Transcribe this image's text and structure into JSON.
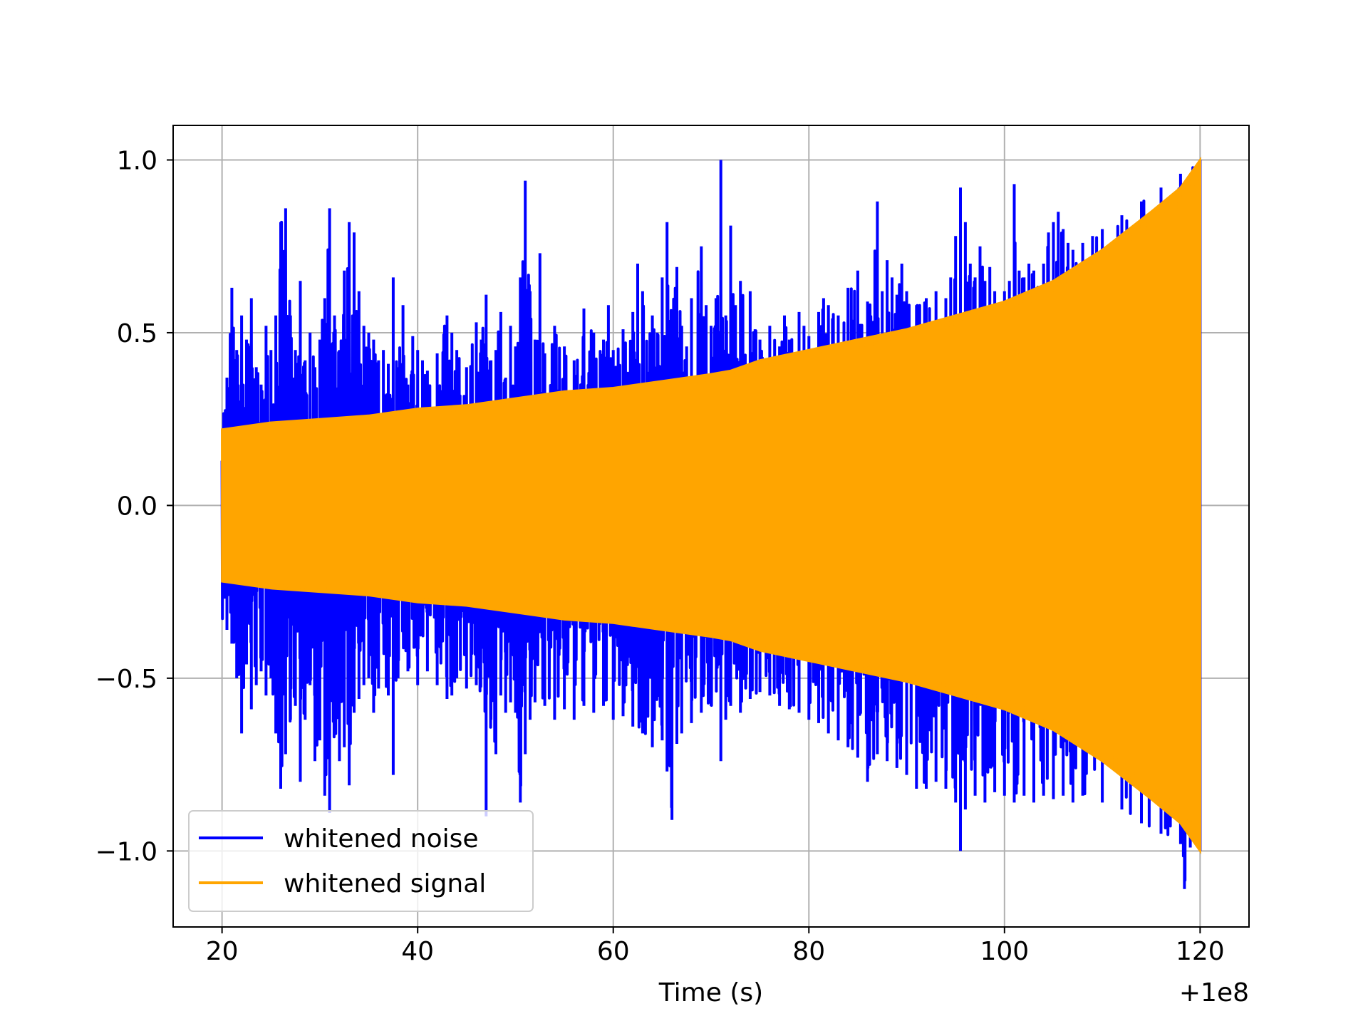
{
  "chart_data": {
    "type": "line",
    "title": "",
    "xlabel": "Time (s)",
    "ylabel": "",
    "x_offset_label": "+1e8",
    "xlim": [
      15,
      125
    ],
    "ylim": [
      -1.22,
      1.1
    ],
    "x_ticks": [
      20,
      40,
      60,
      80,
      100,
      120
    ],
    "x_tick_labels": [
      "20",
      "40",
      "60",
      "80",
      "100",
      "120"
    ],
    "y_ticks": [
      -1.0,
      -0.5,
      0.0,
      0.5,
      1.0
    ],
    "y_tick_labels": [
      "−1.0",
      "−0.5",
      "0.0",
      "0.5",
      "1.0"
    ],
    "grid": true,
    "legend_position": "lower-left",
    "series": [
      {
        "name": "whitened noise",
        "color": "#0000ff",
        "x_range": [
          20,
          120
        ],
        "upper_peaks": [
          [
            20.5,
            0.37
          ],
          [
            21.0,
            0.63
          ],
          [
            21.5,
            0.45
          ],
          [
            22.0,
            0.55
          ],
          [
            22.5,
            0.48
          ],
          [
            23.0,
            0.6
          ],
          [
            23.5,
            0.4
          ],
          [
            24.0,
            0.35
          ],
          [
            24.5,
            0.52
          ],
          [
            25.0,
            0.45
          ],
          [
            25.5,
            0.55
          ],
          [
            26.0,
            0.82
          ],
          [
            26.5,
            0.86
          ],
          [
            27.0,
            0.55
          ],
          [
            27.5,
            0.45
          ],
          [
            28.0,
            0.65
          ],
          [
            28.5,
            0.42
          ],
          [
            29.0,
            0.5
          ],
          [
            29.5,
            0.4
          ],
          [
            30.0,
            0.48
          ],
          [
            30.5,
            0.6
          ],
          [
            31.0,
            0.86
          ],
          [
            31.5,
            0.55
          ],
          [
            32.0,
            0.45
          ],
          [
            32.5,
            0.68
          ],
          [
            33.0,
            0.82
          ],
          [
            33.5,
            0.79
          ],
          [
            34.0,
            0.62
          ],
          [
            34.5,
            0.52
          ],
          [
            35.0,
            0.5
          ],
          [
            35.5,
            0.48
          ],
          [
            36.0,
            0.42
          ],
          [
            36.5,
            0.45
          ],
          [
            37.0,
            0.41
          ],
          [
            37.5,
            0.66
          ],
          [
            38.0,
            0.4
          ],
          [
            38.5,
            0.58
          ],
          [
            39.0,
            0.35
          ],
          [
            39.5,
            0.49
          ],
          [
            40.0,
            0.45
          ],
          [
            40.5,
            0.42
          ],
          [
            41.0,
            0.39
          ],
          [
            42.0,
            0.44
          ],
          [
            43.0,
            0.55
          ],
          [
            43.5,
            0.5
          ],
          [
            44.0,
            0.45
          ],
          [
            45.0,
            0.4
          ],
          [
            46.0,
            0.53
          ],
          [
            46.5,
            0.48
          ],
          [
            47.0,
            0.61
          ],
          [
            47.5,
            0.42
          ],
          [
            48.0,
            0.45
          ],
          [
            48.5,
            0.56
          ],
          [
            49.0,
            0.37
          ],
          [
            49.5,
            0.52
          ],
          [
            50.0,
            0.46
          ],
          [
            50.5,
            0.66
          ],
          [
            51.0,
            0.94
          ],
          [
            51.5,
            0.62
          ],
          [
            52.0,
            0.48
          ],
          [
            52.5,
            0.73
          ],
          [
            53.0,
            0.44
          ],
          [
            54.0,
            0.52
          ],
          [
            55.0,
            0.46
          ],
          [
            56.0,
            0.42
          ],
          [
            57.0,
            0.57
          ],
          [
            58.0,
            0.5
          ],
          [
            59.0,
            0.48
          ],
          [
            59.5,
            0.58
          ],
          [
            60.0,
            0.45
          ],
          [
            61.0,
            0.51
          ],
          [
            62.0,
            0.56
          ],
          [
            62.5,
            0.7
          ],
          [
            63.0,
            0.62
          ],
          [
            64.0,
            0.55
          ],
          [
            64.5,
            0.5
          ],
          [
            65.0,
            0.66
          ],
          [
            65.5,
            0.82
          ],
          [
            66.0,
            0.56
          ],
          [
            66.5,
            0.69
          ],
          [
            67.0,
            0.52
          ],
          [
            67.5,
            0.46
          ],
          [
            68.0,
            0.6
          ],
          [
            69.0,
            0.75
          ],
          [
            69.5,
            0.58
          ],
          [
            70.0,
            0.52
          ],
          [
            70.5,
            0.6
          ],
          [
            71.0,
            1.0
          ],
          [
            71.5,
            0.55
          ],
          [
            72.0,
            0.81
          ],
          [
            72.5,
            0.58
          ],
          [
            73.0,
            0.65
          ],
          [
            74.0,
            0.62
          ],
          [
            74.5,
            0.51
          ],
          [
            75.0,
            0.48
          ],
          [
            76.0,
            0.52
          ],
          [
            77.0,
            0.46
          ],
          [
            77.5,
            0.55
          ],
          [
            78.0,
            0.48
          ],
          [
            79.0,
            0.56
          ],
          [
            79.5,
            0.52
          ],
          [
            80.0,
            0.49
          ],
          [
            81.0,
            0.56
          ],
          [
            81.5,
            0.6
          ],
          [
            82.0,
            0.58
          ],
          [
            83.0,
            0.55
          ],
          [
            84.0,
            0.63
          ],
          [
            85.0,
            0.68
          ],
          [
            86.0,
            0.59
          ],
          [
            87.0,
            0.88
          ],
          [
            87.5,
            0.62
          ],
          [
            88.0,
            0.71
          ],
          [
            88.5,
            0.66
          ],
          [
            89.0,
            0.61
          ],
          [
            89.5,
            0.7
          ],
          [
            90.0,
            0.62
          ],
          [
            91.0,
            0.58
          ],
          [
            92.0,
            0.6
          ],
          [
            93.0,
            0.62
          ],
          [
            94.0,
            0.6
          ],
          [
            94.5,
            0.66
          ],
          [
            95.0,
            0.78
          ],
          [
            95.5,
            0.92
          ],
          [
            96.0,
            0.82
          ],
          [
            96.5,
            0.7
          ],
          [
            97.0,
            0.66
          ],
          [
            97.5,
            0.75
          ],
          [
            98.0,
            0.65
          ],
          [
            98.5,
            0.69
          ],
          [
            99.0,
            0.62
          ],
          [
            100.0,
            0.62
          ],
          [
            100.5,
            0.65
          ],
          [
            101.0,
            0.93
          ],
          [
            101.5,
            0.68
          ],
          [
            102.0,
            0.66
          ],
          [
            102.5,
            0.7
          ],
          [
            103.0,
            0.68
          ],
          [
            104.0,
            0.7
          ],
          [
            104.5,
            0.79
          ],
          [
            105.0,
            0.82
          ],
          [
            105.5,
            0.85
          ],
          [
            106.0,
            0.8
          ],
          [
            106.5,
            0.76
          ],
          [
            107.0,
            0.74
          ],
          [
            108.0,
            0.76
          ],
          [
            109.0,
            0.78
          ],
          [
            110.0,
            0.8
          ],
          [
            112.0,
            0.84
          ],
          [
            114.0,
            0.88
          ],
          [
            116.0,
            0.92
          ],
          [
            118.0,
            0.96
          ],
          [
            120.0,
            1.0
          ]
        ],
        "lower_peaks": [
          [
            20.5,
            -0.36
          ],
          [
            21.0,
            -0.4
          ],
          [
            21.5,
            -0.5
          ],
          [
            22.0,
            -0.66
          ],
          [
            22.5,
            -0.46
          ],
          [
            23.0,
            -0.59
          ],
          [
            23.5,
            -0.52
          ],
          [
            24.0,
            -0.48
          ],
          [
            24.5,
            -0.55
          ],
          [
            25.0,
            -0.5
          ],
          [
            25.5,
            -0.66
          ],
          [
            26.0,
            -0.82
          ],
          [
            26.5,
            -0.72
          ],
          [
            27.0,
            -0.62
          ],
          [
            27.5,
            -0.58
          ],
          [
            28.0,
            -0.8
          ],
          [
            28.5,
            -0.62
          ],
          [
            29.0,
            -0.52
          ],
          [
            29.5,
            -0.74
          ],
          [
            30.0,
            -0.68
          ],
          [
            30.5,
            -0.84
          ],
          [
            31.0,
            -0.89
          ],
          [
            31.5,
            -0.66
          ],
          [
            32.0,
            -0.74
          ],
          [
            32.5,
            -0.7
          ],
          [
            33.0,
            -0.81
          ],
          [
            33.5,
            -0.6
          ],
          [
            34.0,
            -0.56
          ],
          [
            34.5,
            -0.52
          ],
          [
            35.0,
            -0.5
          ],
          [
            35.5,
            -0.6
          ],
          [
            36.0,
            -0.53
          ],
          [
            37.0,
            -0.55
          ],
          [
            37.5,
            -0.78
          ],
          [
            38.0,
            -0.5
          ],
          [
            39.0,
            -0.48
          ],
          [
            40.0,
            -0.52
          ],
          [
            41.0,
            -0.48
          ],
          [
            42.0,
            -0.52
          ],
          [
            43.0,
            -0.56
          ],
          [
            43.5,
            -0.55
          ],
          [
            44.0,
            -0.5
          ],
          [
            45.0,
            -0.53
          ],
          [
            46.0,
            -0.52
          ],
          [
            47.0,
            -0.9
          ],
          [
            47.5,
            -0.62
          ],
          [
            48.0,
            -0.72
          ],
          [
            48.5,
            -0.55
          ],
          [
            49.0,
            -0.6
          ],
          [
            49.5,
            -0.57
          ],
          [
            50.0,
            -0.6
          ],
          [
            50.5,
            -0.86
          ],
          [
            51.0,
            -0.72
          ],
          [
            51.5,
            -0.62
          ],
          [
            52.0,
            -0.57
          ],
          [
            53.0,
            -0.58
          ],
          [
            54.0,
            -0.62
          ],
          [
            55.0,
            -0.59
          ],
          [
            56.0,
            -0.62
          ],
          [
            57.0,
            -0.58
          ],
          [
            58.0,
            -0.6
          ],
          [
            59.0,
            -0.58
          ],
          [
            60.0,
            -0.62
          ],
          [
            61.0,
            -0.61
          ],
          [
            62.0,
            -0.64
          ],
          [
            63.0,
            -0.66
          ],
          [
            64.0,
            -0.7
          ],
          [
            65.0,
            -0.68
          ],
          [
            65.5,
            -0.77
          ],
          [
            66.0,
            -0.91
          ],
          [
            66.5,
            -0.69
          ],
          [
            67.0,
            -0.66
          ],
          [
            68.0,
            -0.63
          ],
          [
            69.0,
            -0.6
          ],
          [
            70.0,
            -0.58
          ],
          [
            71.0,
            -0.74
          ],
          [
            71.5,
            -0.62
          ],
          [
            72.0,
            -0.58
          ],
          [
            73.0,
            -0.6
          ],
          [
            74.0,
            -0.56
          ],
          [
            75.0,
            -0.54
          ],
          [
            76.0,
            -0.55
          ],
          [
            77.0,
            -0.58
          ],
          [
            78.0,
            -0.59
          ],
          [
            79.0,
            -0.6
          ],
          [
            80.0,
            -0.62
          ],
          [
            81.0,
            -0.63
          ],
          [
            82.0,
            -0.66
          ],
          [
            83.0,
            -0.68
          ],
          [
            84.0,
            -0.7
          ],
          [
            85.0,
            -0.73
          ],
          [
            86.0,
            -0.8
          ],
          [
            87.0,
            -0.72
          ],
          [
            88.0,
            -0.74
          ],
          [
            89.0,
            -0.76
          ],
          [
            90.0,
            -0.78
          ],
          [
            91.0,
            -0.82
          ],
          [
            92.0,
            -0.82
          ],
          [
            93.0,
            -0.8
          ],
          [
            94.0,
            -0.82
          ],
          [
            95.0,
            -0.86
          ],
          [
            95.5,
            -1.0
          ],
          [
            96.0,
            -0.88
          ],
          [
            97.0,
            -0.84
          ],
          [
            98.0,
            -0.86
          ],
          [
            99.0,
            -0.83
          ],
          [
            100.0,
            -0.84
          ],
          [
            101.0,
            -0.86
          ],
          [
            102.0,
            -0.84
          ],
          [
            103.0,
            -0.86
          ],
          [
            104.0,
            -0.84
          ],
          [
            105.0,
            -0.85
          ],
          [
            106.0,
            -0.84
          ],
          [
            107.0,
            -0.86
          ],
          [
            108.0,
            -0.84
          ],
          [
            110.0,
            -0.86
          ],
          [
            112.0,
            -0.88
          ],
          [
            114.0,
            -0.92
          ],
          [
            116.0,
            -0.95
          ],
          [
            118.0,
            -0.98
          ],
          [
            118.4,
            -1.11
          ],
          [
            119.0,
            -0.99
          ],
          [
            120.0,
            -1.0
          ]
        ]
      },
      {
        "name": "whitened signal",
        "color": "#ffa500",
        "x_range": [
          20,
          120
        ],
        "envelope": [
          [
            20,
            0.22
          ],
          [
            25,
            0.24
          ],
          [
            30,
            0.25
          ],
          [
            35,
            0.26
          ],
          [
            40,
            0.28
          ],
          [
            45,
            0.29
          ],
          [
            50,
            0.31
          ],
          [
            55,
            0.33
          ],
          [
            60,
            0.34
          ],
          [
            65,
            0.36
          ],
          [
            70,
            0.38
          ],
          [
            72,
            0.39
          ],
          [
            75,
            0.42
          ],
          [
            80,
            0.45
          ],
          [
            85,
            0.48
          ],
          [
            90,
            0.51
          ],
          [
            95,
            0.55
          ],
          [
            100,
            0.59
          ],
          [
            105,
            0.65
          ],
          [
            110,
            0.74
          ],
          [
            115,
            0.85
          ],
          [
            118,
            0.92
          ],
          [
            120,
            1.0
          ]
        ]
      }
    ]
  }
}
